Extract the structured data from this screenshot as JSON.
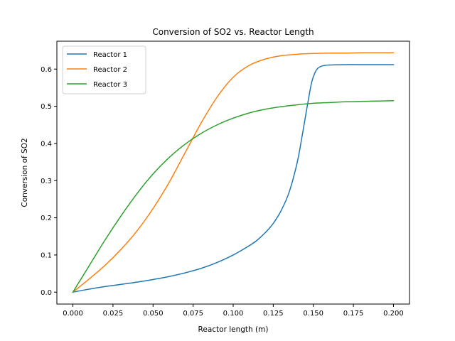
{
  "chart_data": {
    "type": "line",
    "title": "Conversion of SO2 vs. Reactor Length",
    "xlabel": "Reactor length (m)",
    "ylabel": "Conversion of SO2",
    "xlim": [
      -0.01,
      0.21
    ],
    "ylim": [
      -0.032,
      0.675
    ],
    "xticks": [
      0.0,
      0.025,
      0.05,
      0.075,
      0.1,
      0.125,
      0.15,
      0.175,
      0.2
    ],
    "xtick_labels": [
      "0.000",
      "0.025",
      "0.050",
      "0.075",
      "0.100",
      "0.125",
      "0.150",
      "0.175",
      "0.200"
    ],
    "yticks": [
      0.0,
      0.1,
      0.2,
      0.3,
      0.4,
      0.5,
      0.6
    ],
    "ytick_labels": [
      "0.0",
      "0.1",
      "0.2",
      "0.3",
      "0.4",
      "0.5",
      "0.6"
    ],
    "grid": false,
    "legend_position": "upper-left",
    "series": [
      {
        "name": "Reactor 1",
        "color": "#1f77b4",
        "points": [
          [
            0.0,
            0.0
          ],
          [
            0.01,
            0.008
          ],
          [
            0.02,
            0.015
          ],
          [
            0.03,
            0.021
          ],
          [
            0.04,
            0.027
          ],
          [
            0.05,
            0.034
          ],
          [
            0.06,
            0.042
          ],
          [
            0.07,
            0.052
          ],
          [
            0.08,
            0.064
          ],
          [
            0.09,
            0.08
          ],
          [
            0.1,
            0.1
          ],
          [
            0.11,
            0.125
          ],
          [
            0.115,
            0.14
          ],
          [
            0.12,
            0.16
          ],
          [
            0.125,
            0.185
          ],
          [
            0.13,
            0.22
          ],
          [
            0.135,
            0.27
          ],
          [
            0.14,
            0.35
          ],
          [
            0.143,
            0.42
          ],
          [
            0.145,
            0.47
          ],
          [
            0.147,
            0.52
          ],
          [
            0.149,
            0.565
          ],
          [
            0.151,
            0.59
          ],
          [
            0.153,
            0.603
          ],
          [
            0.156,
            0.609
          ],
          [
            0.16,
            0.611
          ],
          [
            0.17,
            0.612
          ],
          [
            0.18,
            0.612
          ],
          [
            0.19,
            0.612
          ],
          [
            0.2,
            0.612
          ]
        ]
      },
      {
        "name": "Reactor 2",
        "color": "#ff7f0e",
        "points": [
          [
            0.0,
            0.0
          ],
          [
            0.01,
            0.035
          ],
          [
            0.02,
            0.072
          ],
          [
            0.03,
            0.115
          ],
          [
            0.04,
            0.165
          ],
          [
            0.05,
            0.225
          ],
          [
            0.06,
            0.295
          ],
          [
            0.07,
            0.375
          ],
          [
            0.08,
            0.455
          ],
          [
            0.09,
            0.525
          ],
          [
            0.1,
            0.578
          ],
          [
            0.11,
            0.61
          ],
          [
            0.12,
            0.627
          ],
          [
            0.13,
            0.636
          ],
          [
            0.14,
            0.64
          ],
          [
            0.15,
            0.642
          ],
          [
            0.16,
            0.643
          ],
          [
            0.17,
            0.643
          ],
          [
            0.18,
            0.644
          ],
          [
            0.19,
            0.644
          ],
          [
            0.2,
            0.644
          ]
        ]
      },
      {
        "name": "Reactor 3",
        "color": "#2ca02c",
        "points": [
          [
            0.0,
            0.0
          ],
          [
            0.01,
            0.07
          ],
          [
            0.02,
            0.14
          ],
          [
            0.03,
            0.205
          ],
          [
            0.04,
            0.265
          ],
          [
            0.05,
            0.318
          ],
          [
            0.06,
            0.362
          ],
          [
            0.07,
            0.398
          ],
          [
            0.08,
            0.427
          ],
          [
            0.09,
            0.45
          ],
          [
            0.1,
            0.468
          ],
          [
            0.11,
            0.482
          ],
          [
            0.12,
            0.492
          ],
          [
            0.13,
            0.499
          ],
          [
            0.14,
            0.504
          ],
          [
            0.15,
            0.508
          ],
          [
            0.16,
            0.51
          ],
          [
            0.17,
            0.512
          ],
          [
            0.18,
            0.513
          ],
          [
            0.19,
            0.514
          ],
          [
            0.2,
            0.515
          ]
        ]
      }
    ]
  }
}
